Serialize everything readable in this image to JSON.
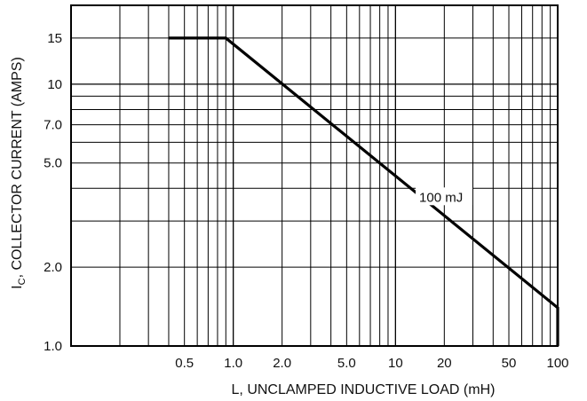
{
  "chart_data": {
    "type": "line",
    "title": "",
    "xlabel": "L, UNCLAMPED INDUCTIVE LOAD (mH)",
    "ylabel_main": "I",
    "ylabel_sub": "C",
    "ylabel_rest": ", COLLECTOR CURRENT (AMPS)",
    "x_scale": "log",
    "y_scale": "log",
    "xlim": [
      0.1,
      100
    ],
    "ylim": [
      1.0,
      20
    ],
    "grid": true,
    "x_ticks": [
      {
        "value": 0.5,
        "label": "0.5"
      },
      {
        "value": 1.0,
        "label": "1.0"
      },
      {
        "value": 2.0,
        "label": "2.0"
      },
      {
        "value": 5.0,
        "label": "5.0"
      },
      {
        "value": 10,
        "label": "10"
      },
      {
        "value": 20,
        "label": "20"
      },
      {
        "value": 50,
        "label": "50"
      },
      {
        "value": 100,
        "label": "100"
      }
    ],
    "y_ticks": [
      {
        "value": 1.0,
        "label": "1.0"
      },
      {
        "value": 2.0,
        "label": "2.0"
      },
      {
        "value": 5.0,
        "label": "5.0"
      },
      {
        "value": 7.0,
        "label": "7.0"
      },
      {
        "value": 10,
        "label": "10"
      },
      {
        "value": 15,
        "label": "15"
      }
    ],
    "series": [
      {
        "name": "100 mJ",
        "x": [
          0.4,
          0.9,
          100,
          100
        ],
        "y": [
          15,
          15,
          1.4,
          1.0
        ]
      }
    ],
    "annotations": [
      {
        "text": "100 mJ",
        "x": 14,
        "y": 3.7
      }
    ]
  }
}
